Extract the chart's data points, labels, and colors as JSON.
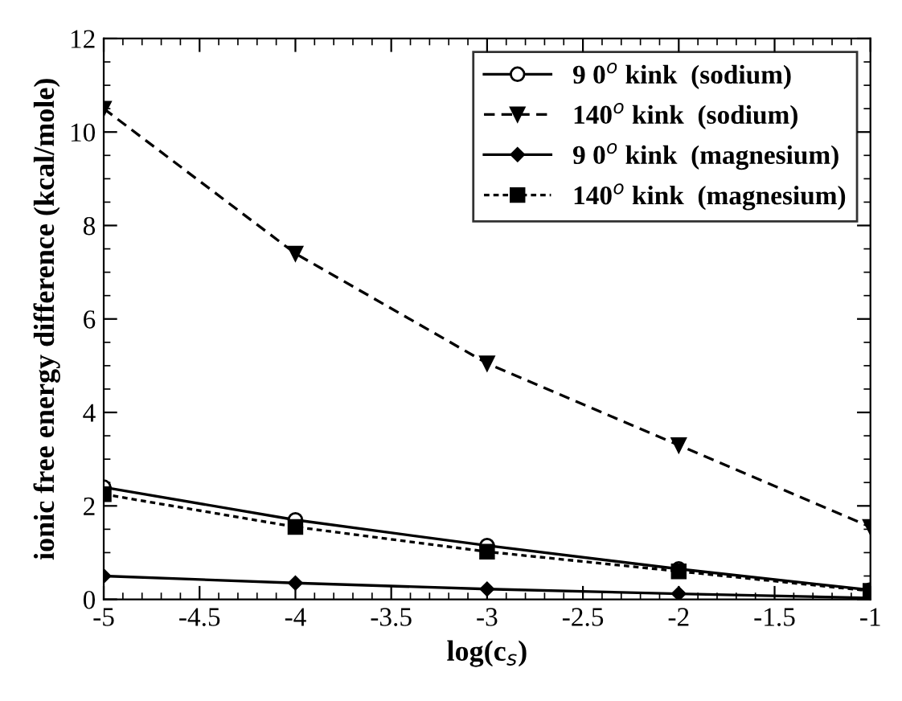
{
  "chart_data": {
    "type": "line",
    "xlabel": "log(c$_{s}$)",
    "ylabel": "ionic free energy difference (kcal/mole)",
    "x": [
      -5,
      -4,
      -3,
      -2,
      -1
    ],
    "series": [
      {
        "name": "9 0$^{o}$ kink  (sodium)",
        "color": "#000000",
        "values": [
          2.4,
          1.7,
          1.15,
          0.65,
          0.2
        ],
        "marker": "circle",
        "line_style": "solid"
      },
      {
        "name": "140$^{o}$ kink  (sodium)",
        "color": "#000000",
        "values": [
          10.5,
          7.4,
          5.05,
          3.3,
          1.55
        ],
        "marker": "triangle",
        "line_style": "dashed"
      },
      {
        "name": "9 0$^{o}$ kink  (magnesium)",
        "color": "#000000",
        "values": [
          0.5,
          0.35,
          0.22,
          0.12,
          0.03
        ],
        "marker": "diamond",
        "line_style": "solid"
      },
      {
        "name": "140$^{o}$ kink  (magnesium)",
        "color": "#000000",
        "values": [
          2.25,
          1.55,
          1.02,
          0.6,
          0.18
        ],
        "marker": "square",
        "line_style": "dotted"
      }
    ],
    "xlim": [
      -5,
      -1
    ],
    "xticks": [
      -5,
      -4.5,
      -4,
      -3.5,
      -3,
      -2.5,
      -2,
      -1.5,
      -1
    ],
    "ylim": [
      0,
      12
    ],
    "yticks": [
      0,
      2,
      4,
      6,
      8,
      10,
      12
    ],
    "grid": false,
    "legend": "top right"
  }
}
